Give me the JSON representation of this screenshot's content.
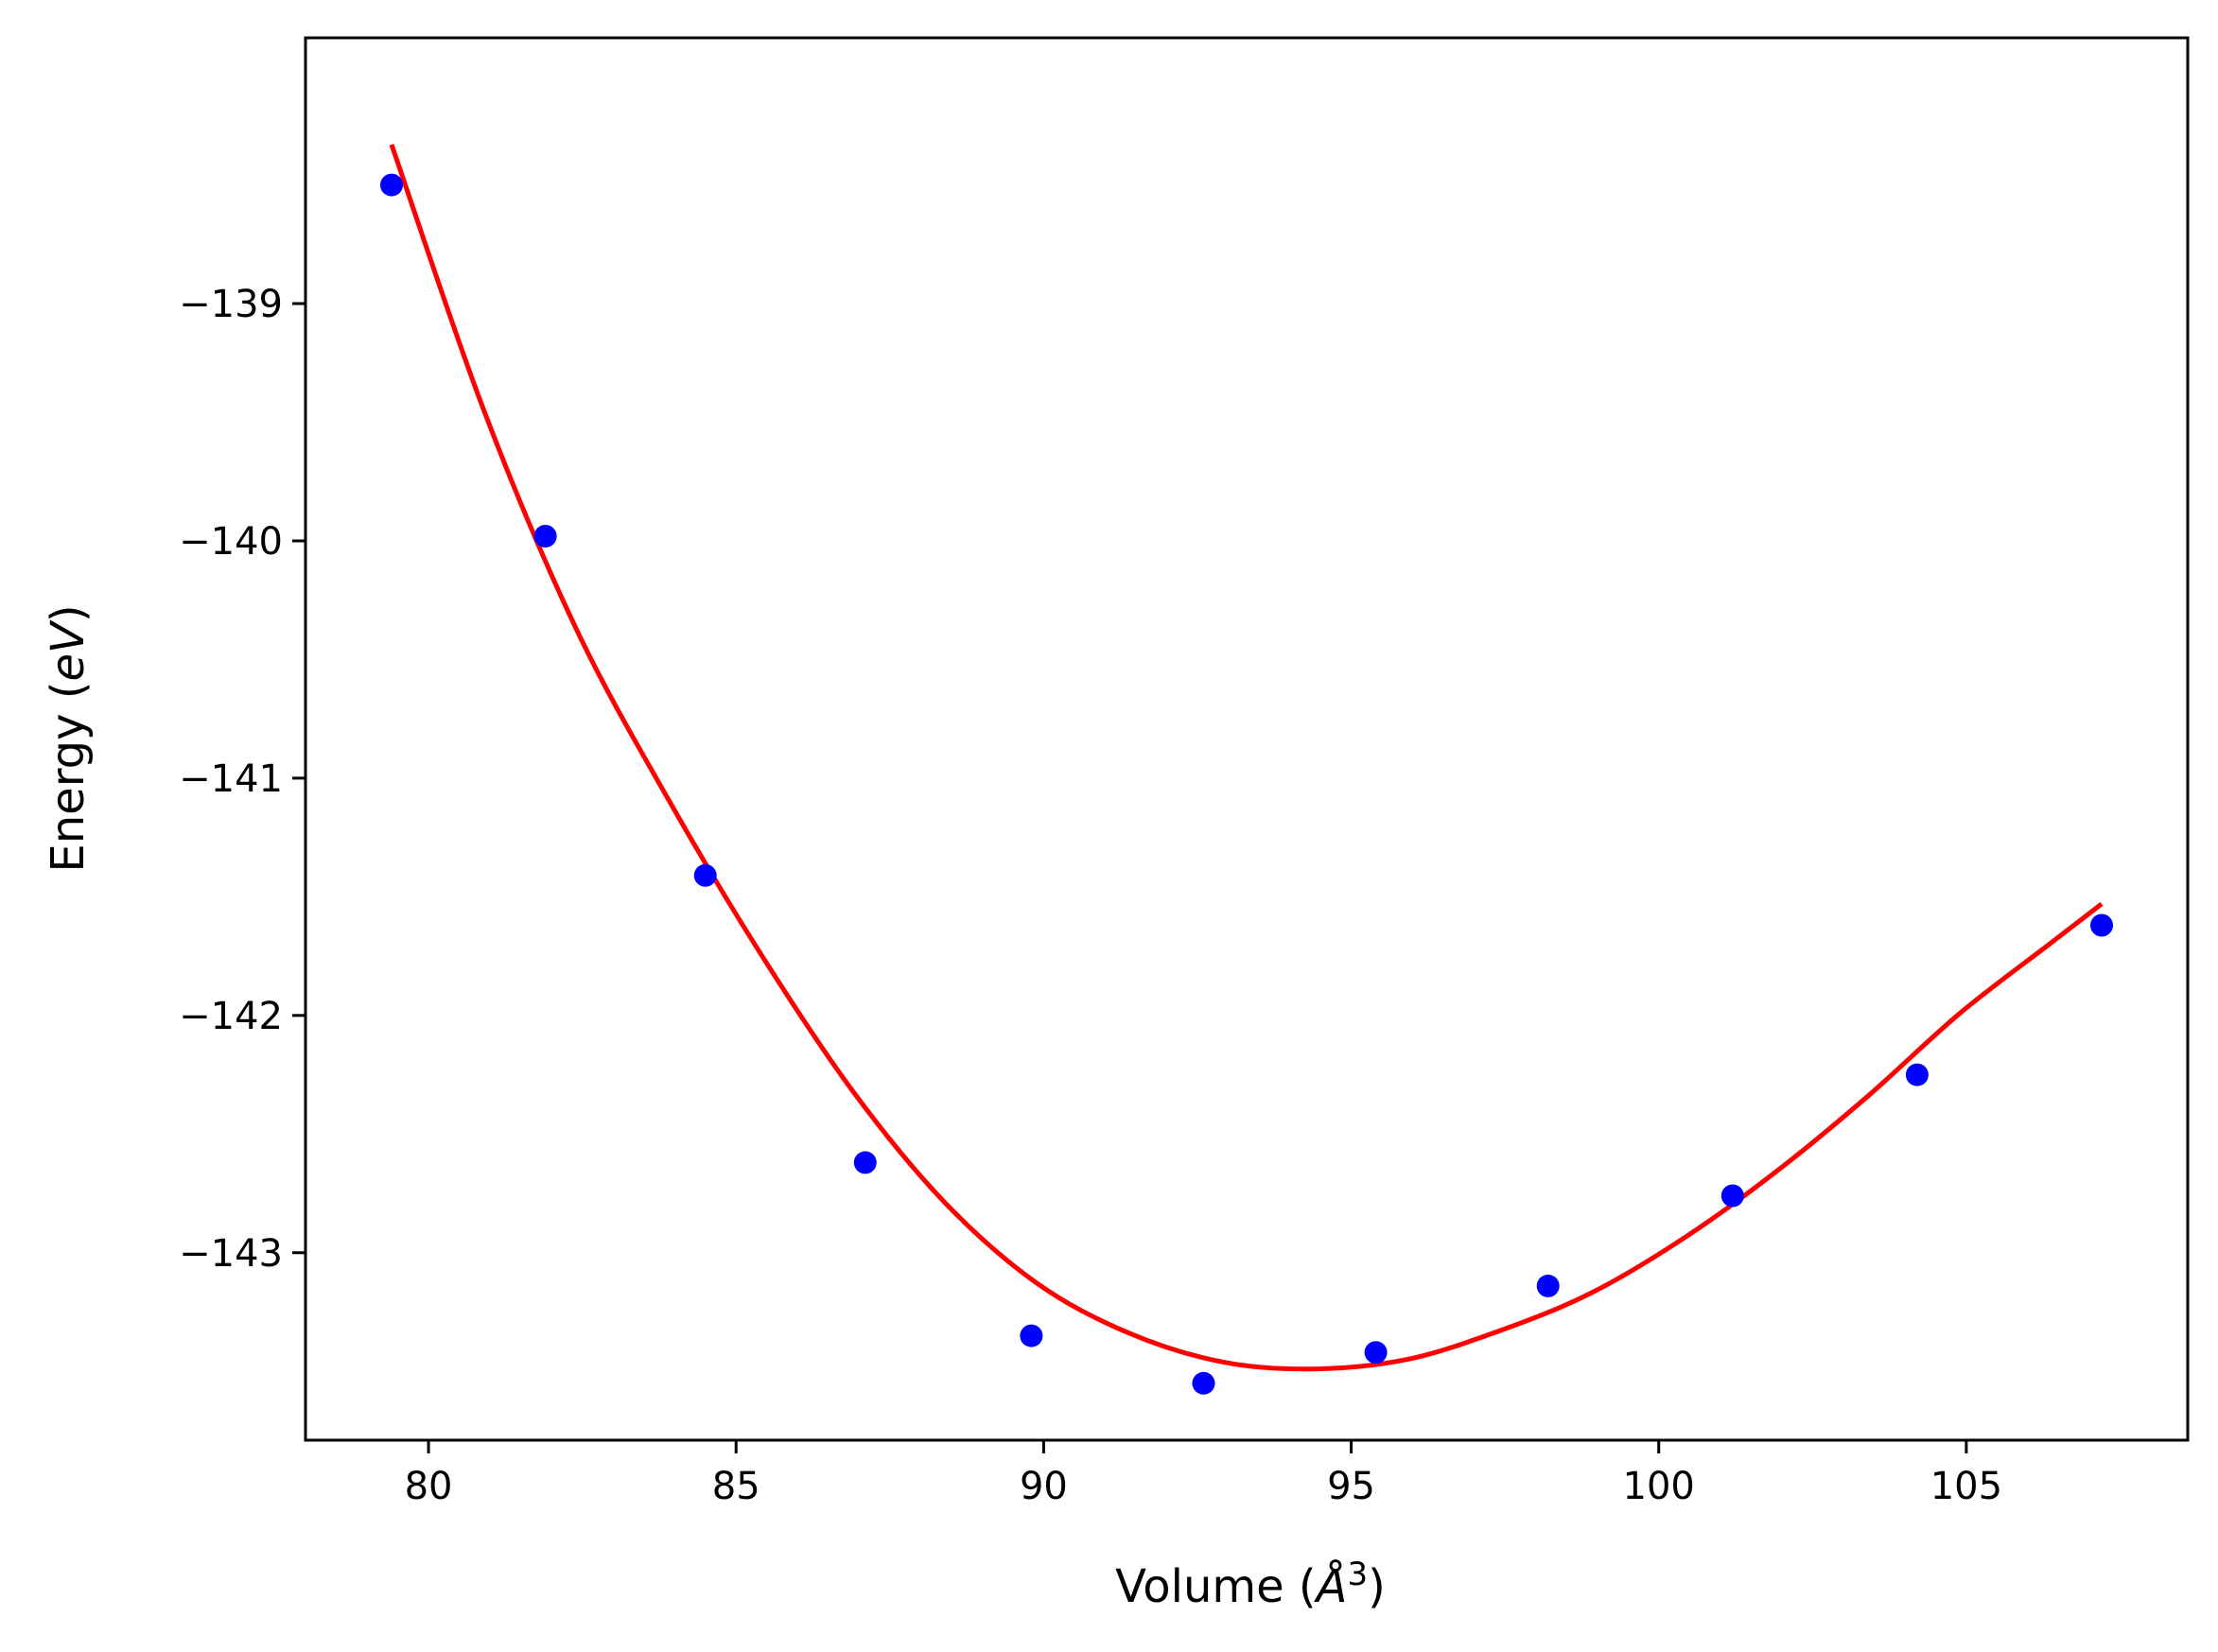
{
  "chart_data": {
    "type": "scatter",
    "title": "",
    "xlabel": {
      "prefix": "Volume (",
      "symbol": "Å",
      "exponent": "3",
      "suffix": ")"
    },
    "ylabel": {
      "prefix": "Energy (",
      "unit": "eV",
      "suffix": ")"
    },
    "xlim": [
      78.0,
      108.6
    ],
    "ylim": [
      -143.79,
      -137.88
    ],
    "xticks": [
      80,
      85,
      90,
      95,
      100,
      105
    ],
    "yticks": [
      -139,
      -140,
      -141,
      -142,
      -143
    ],
    "xtick_labels": [
      "80",
      "85",
      "90",
      "95",
      "100",
      "105"
    ],
    "ytick_labels": [
      "−139",
      "−140",
      "−141",
      "−142",
      "−143"
    ],
    "grid": false,
    "legend": "none",
    "series": [
      {
        "kind": "points",
        "color": "#0000ff",
        "x": [
          79.4,
          81.9,
          84.5,
          87.1,
          89.8,
          92.6,
          95.4,
          98.2,
          101.2,
          104.2,
          107.2
        ],
        "y": [
          -138.5,
          -139.98,
          -141.41,
          -142.62,
          -143.35,
          -143.55,
          -143.42,
          -143.14,
          -142.76,
          -142.25,
          -141.62
        ]
      },
      {
        "kind": "fit",
        "color": "#ff0000",
        "x": [
          79.4,
          80.9,
          82.4,
          83.9,
          85.4,
          86.9,
          88.4,
          89.9,
          91.4,
          92.9,
          94.35,
          95.9,
          97.4,
          98.9,
          100.4,
          101.9,
          103.4,
          104.9,
          106.4,
          107.2
        ],
        "y": [
          -138.33,
          -139.45,
          -140.37,
          -141.09,
          -141.74,
          -142.32,
          -142.79,
          -143.13,
          -143.34,
          -143.46,
          -143.49,
          -143.45,
          -143.33,
          -143.17,
          -142.94,
          -142.66,
          -142.34,
          -141.99,
          -141.69,
          -141.53
        ]
      }
    ]
  }
}
